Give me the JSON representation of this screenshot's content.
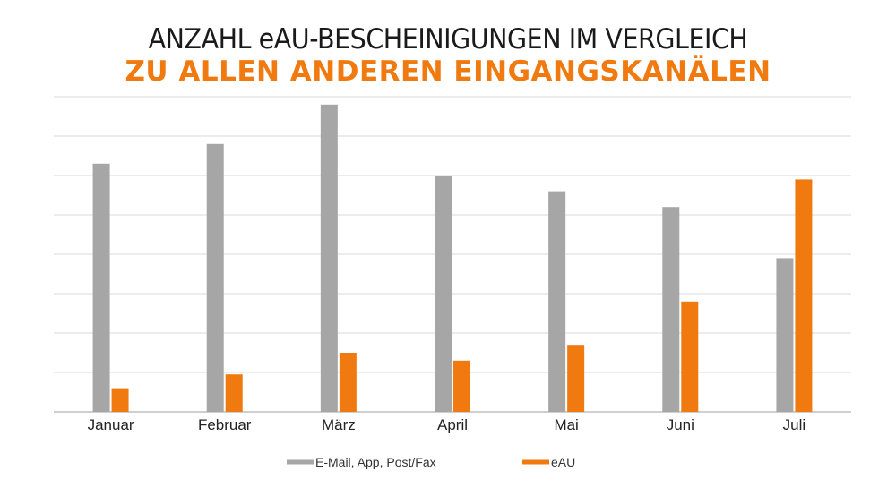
{
  "chart_data": {
    "type": "bar",
    "title": "ANZAHL eAU-BESCHEINIGUNGEN IM VERGLEICH",
    "subtitle": "ZU ALLEN ANDEREN EINGANGSKANÄLEN",
    "categories": [
      "Januar",
      "Februar",
      "März",
      "April",
      "Mai",
      "Juni",
      "Juli"
    ],
    "series": [
      {
        "name": "E-Mail, App, Post/Fax",
        "color": "#a6a6a6",
        "values": [
          6.3,
          6.8,
          7.8,
          6.0,
          5.6,
          5.2,
          3.9
        ]
      },
      {
        "name": "eAU",
        "color": "#f07a0f",
        "values": [
          0.6,
          0.95,
          1.5,
          1.3,
          1.7,
          2.8,
          5.9
        ]
      }
    ],
    "ylim": [
      0,
      8
    ],
    "grid": true,
    "legend": "bottom-center",
    "xlabel": "",
    "ylabel": ""
  }
}
